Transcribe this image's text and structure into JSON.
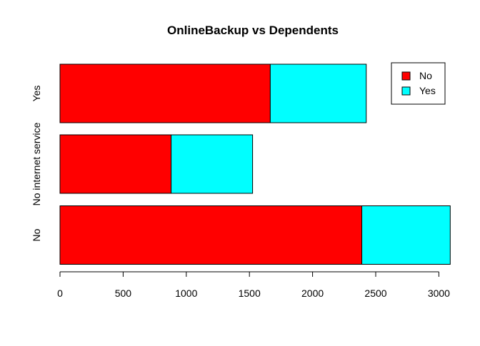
{
  "chart_data": {
    "type": "bar",
    "orientation": "horizontal",
    "stacked": true,
    "title": "OnlineBackup vs Dependents",
    "xlabel": "",
    "ylabel": "",
    "categories": [
      "No",
      "No internet service",
      "Yes"
    ],
    "series": [
      {
        "name": "No",
        "color": "#ff0000",
        "values": [
          2390,
          880,
          1665
        ]
      },
      {
        "name": "Yes",
        "color": "#00ffff",
        "values": [
          700,
          645,
          760
        ]
      }
    ],
    "x_ticks": [
      0,
      500,
      1000,
      1500,
      2000,
      2500,
      3000
    ],
    "xlim": [
      0,
      3090
    ],
    "grid": false,
    "legend_position": "top-right"
  }
}
